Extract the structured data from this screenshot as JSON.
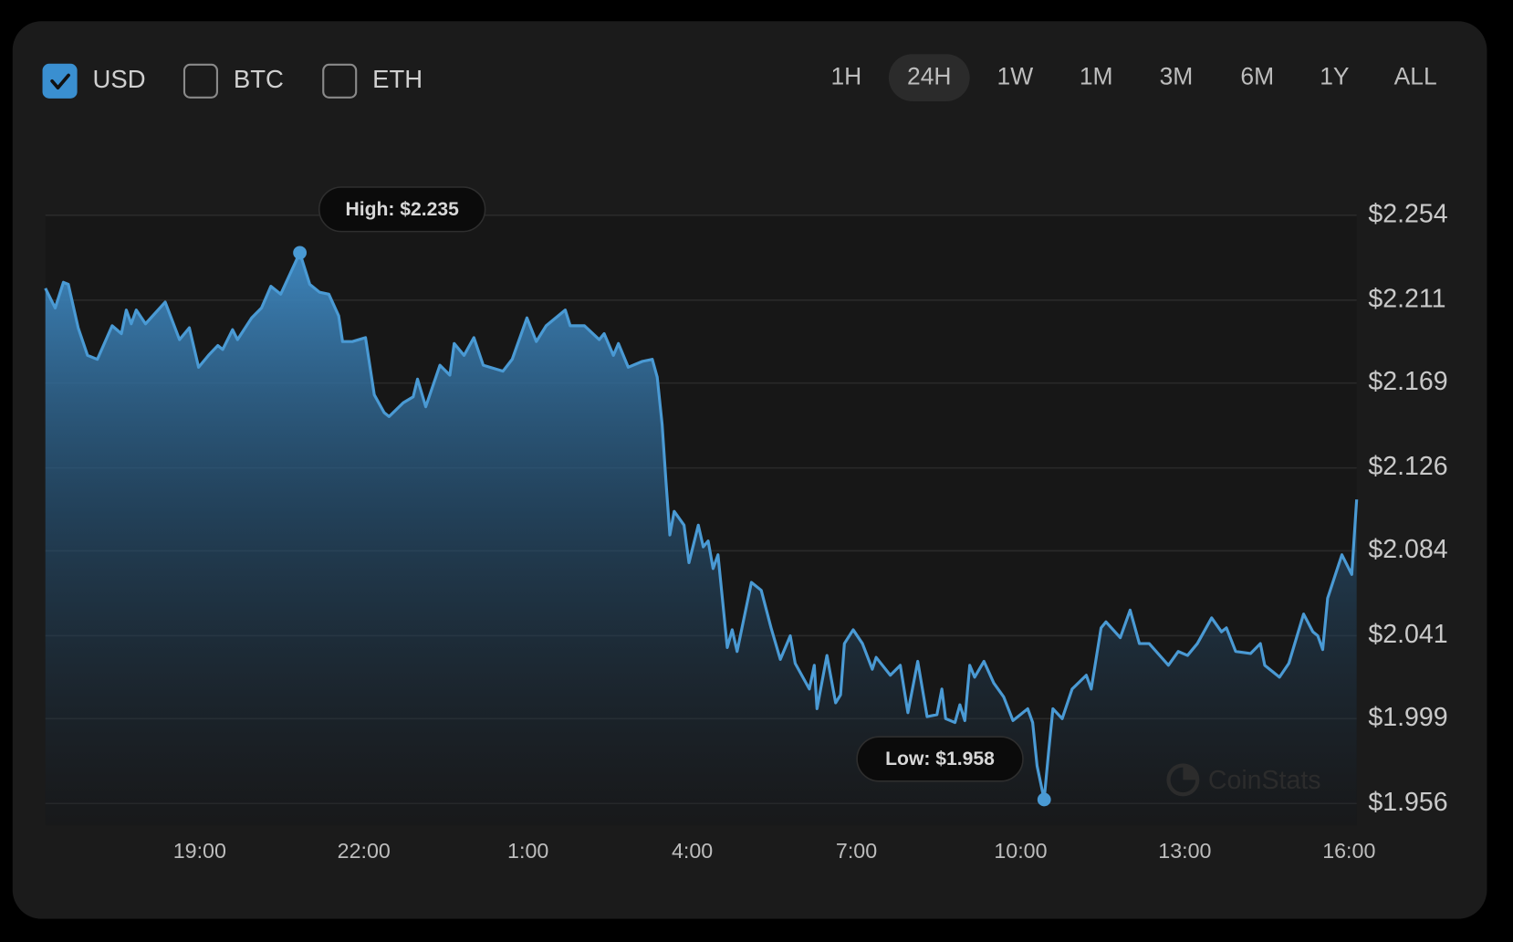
{
  "currencies": [
    {
      "label": "USD",
      "checked": true
    },
    {
      "label": "BTC",
      "checked": false
    },
    {
      "label": "ETH",
      "checked": false
    }
  ],
  "ranges": [
    {
      "label": "1H",
      "selected": false
    },
    {
      "label": "24H",
      "selected": true
    },
    {
      "label": "1W",
      "selected": false
    },
    {
      "label": "1M",
      "selected": false
    },
    {
      "label": "3M",
      "selected": false
    },
    {
      "label": "6M",
      "selected": false
    },
    {
      "label": "1Y",
      "selected": false
    },
    {
      "label": "ALL",
      "selected": false
    }
  ],
  "watermark": "CoinStats",
  "chart_data": {
    "type": "area",
    "color": "#4a9ad4",
    "grid": true,
    "annotations": [
      {
        "text": "High: $2.235",
        "kind": "max"
      },
      {
        "text": "Low: $1.958",
        "kind": "min"
      }
    ],
    "x": [
      16.18,
      16.36,
      16.51,
      16.6,
      16.78,
      16.95,
      17.13,
      17.4,
      17.57,
      17.66,
      17.75,
      17.84,
      18.01,
      18.37,
      18.63,
      18.81,
      18.98,
      19.16,
      19.33,
      19.42,
      19.6,
      19.69,
      19.95,
      20.13,
      20.3,
      20.48,
      20.83,
      21.01,
      21.19,
      21.36,
      21.54,
      21.61,
      21.79,
      22.03,
      22.19,
      22.37,
      22.46,
      22.72,
      22.9,
      22.98,
      23.13,
      23.39,
      23.57,
      23.65,
      23.83,
      24.01,
      24.18,
      24.54,
      24.71,
      24.98,
      25.15,
      25.33,
      25.68,
      25.77,
      26.03,
      26.3,
      26.39,
      26.56,
      26.65,
      26.83,
      27.09,
      27.27,
      27.36,
      27.45,
      27.52,
      27.59,
      27.67,
      27.85,
      27.94,
      28.11,
      28.2,
      28.29,
      28.38,
      28.47,
      28.64,
      28.73,
      28.82,
      29.08,
      29.26,
      29.44,
      29.61,
      29.79,
      29.88,
      30.14,
      30.23,
      30.28,
      30.46,
      30.62,
      30.71,
      30.78,
      30.94,
      31.11,
      31.29,
      31.36,
      31.62,
      31.8,
      31.94,
      32.12,
      32.29,
      32.47,
      32.56,
      32.63,
      32.8,
      32.89,
      32.98,
      33.07,
      33.16,
      33.33,
      33.51,
      33.69,
      33.86,
      33.95,
      34.13,
      34.22,
      34.3,
      34.43,
      34.51,
      34.59,
      34.76,
      34.94,
      35.2,
      35.29,
      35.47,
      35.56,
      35.82,
      36.0,
      36.17,
      36.35,
      36.7,
      36.88,
      37.05,
      37.23,
      37.49,
      37.67,
      37.76,
      37.93,
      38.2,
      38.38,
      38.46,
      38.73,
      38.9,
      39.17,
      39.34,
      39.43,
      39.52,
      39.61,
      39.87,
      40.05,
      40.14
    ],
    "series": [
      {
        "name": "USD",
        "values": [
          2.217,
          2.207,
          2.22,
          2.219,
          2.197,
          2.183,
          2.181,
          2.198,
          2.194,
          2.206,
          2.199,
          2.206,
          2.199,
          2.21,
          2.191,
          2.197,
          2.177,
          2.183,
          2.188,
          2.186,
          2.196,
          2.191,
          2.202,
          2.207,
          2.218,
          2.214,
          2.235,
          2.219,
          2.215,
          2.214,
          2.203,
          2.19,
          2.19,
          2.192,
          2.163,
          2.154,
          2.152,
          2.159,
          2.162,
          2.171,
          2.157,
          2.178,
          2.173,
          2.189,
          2.183,
          2.192,
          2.178,
          2.175,
          2.181,
          2.202,
          2.19,
          2.198,
          2.206,
          2.198,
          2.198,
          2.191,
          2.194,
          2.183,
          2.189,
          2.177,
          2.18,
          2.181,
          2.172,
          2.148,
          2.119,
          2.092,
          2.104,
          2.097,
          2.078,
          2.097,
          2.086,
          2.089,
          2.075,
          2.082,
          2.035,
          2.044,
          2.033,
          2.068,
          2.064,
          2.045,
          2.029,
          2.041,
          2.027,
          2.014,
          2.026,
          2.004,
          2.031,
          2.007,
          2.011,
          2.037,
          2.044,
          2.037,
          2.024,
          2.03,
          2.021,
          2.026,
          2.002,
          2.028,
          2.0,
          2.001,
          2.014,
          1.999,
          1.997,
          2.006,
          1.998,
          2.026,
          2.02,
          2.028,
          2.017,
          2.01,
          1.998,
          2.0,
          2.004,
          1.997,
          1.975,
          1.958,
          1.982,
          2.004,
          1.999,
          2.014,
          2.021,
          2.014,
          2.045,
          2.048,
          2.04,
          2.054,
          2.037,
          2.037,
          2.026,
          2.033,
          2.031,
          2.037,
          2.05,
          2.043,
          2.045,
          2.033,
          2.032,
          2.037,
          2.026,
          2.02,
          2.027,
          2.052,
          2.043,
          2.041,
          2.034,
          2.06,
          2.082,
          2.072,
          2.11
        ]
      }
    ],
    "xlim": [
      16.18,
      40.14
    ],
    "xticks": [
      {
        "value": 19,
        "label": "19:00"
      },
      {
        "value": 22,
        "label": "22:00"
      },
      {
        "value": 25,
        "label": "1:00"
      },
      {
        "value": 28,
        "label": "4:00"
      },
      {
        "value": 31,
        "label": "7:00"
      },
      {
        "value": 34,
        "label": "10:00"
      },
      {
        "value": 37,
        "label": "13:00"
      },
      {
        "value": 40,
        "label": "16:00"
      }
    ],
    "ylim": [
      1.945,
      2.254
    ],
    "yticks": [
      {
        "value": 1.956,
        "label": "$1.956"
      },
      {
        "value": 1.999,
        "label": "$1.999"
      },
      {
        "value": 2.041,
        "label": "$2.041"
      },
      {
        "value": 2.084,
        "label": "$2.084"
      },
      {
        "value": 2.126,
        "label": "$2.126"
      },
      {
        "value": 2.169,
        "label": "$2.169"
      },
      {
        "value": 2.211,
        "label": "$2.211"
      },
      {
        "value": 2.254,
        "label": "$2.254"
      }
    ]
  }
}
